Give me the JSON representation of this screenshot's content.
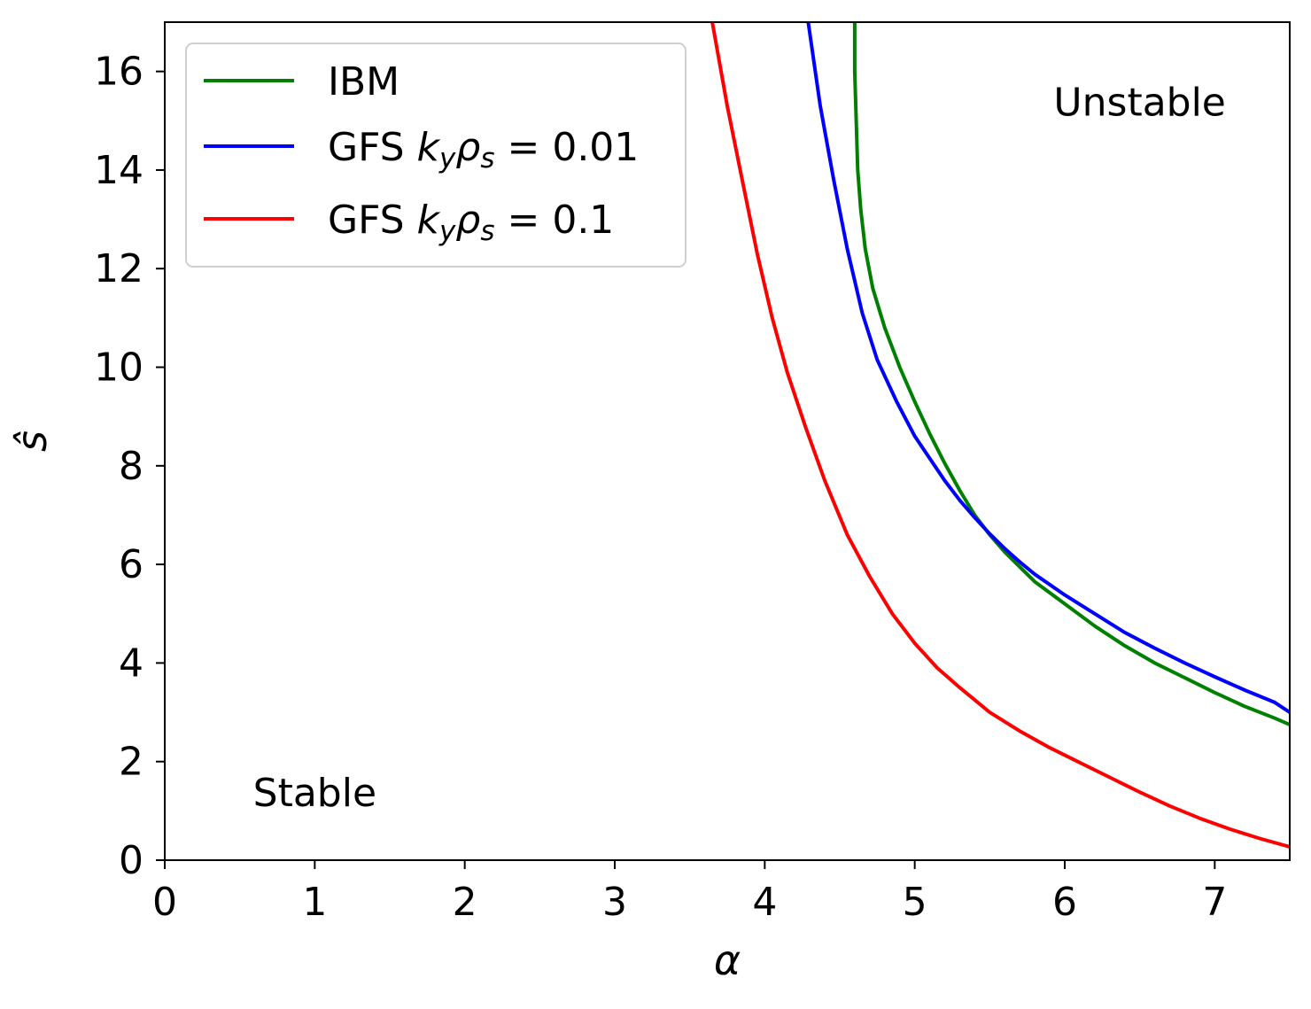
{
  "chart_data": {
    "type": "line",
    "title": "",
    "xlabel": "α",
    "ylabel": "ŝ",
    "xlim": [
      0,
      7.5
    ],
    "ylim": [
      0,
      17
    ],
    "x_ticks": [
      "0",
      "1",
      "2",
      "3",
      "4",
      "5",
      "6",
      "7"
    ],
    "y_ticks": [
      "0",
      "2",
      "4",
      "6",
      "8",
      "10",
      "12",
      "14",
      "16"
    ],
    "grid": false,
    "legend_position": "top-left",
    "annotations": [
      {
        "id": "unstable",
        "text": "Unstable",
        "x": 6.5,
        "y": 15.1
      },
      {
        "id": "stable",
        "text": "Stable",
        "x": 1.0,
        "y": 1.1
      }
    ],
    "series": [
      {
        "name": "IBM",
        "color": "#008000",
        "points": [
          [
            4.6,
            17.0
          ],
          [
            4.6,
            16.0
          ],
          [
            4.61,
            15.0
          ],
          [
            4.62,
            14.0
          ],
          [
            4.64,
            13.2
          ],
          [
            4.67,
            12.4
          ],
          [
            4.72,
            11.6
          ],
          [
            4.8,
            10.8
          ],
          [
            4.9,
            10.0
          ],
          [
            5.0,
            9.3
          ],
          [
            5.1,
            8.65
          ],
          [
            5.2,
            8.05
          ],
          [
            5.3,
            7.5
          ],
          [
            5.4,
            7.0
          ],
          [
            5.5,
            6.6
          ],
          [
            5.6,
            6.25
          ],
          [
            5.7,
            5.95
          ],
          [
            5.8,
            5.65
          ],
          [
            6.0,
            5.2
          ],
          [
            6.2,
            4.75
          ],
          [
            6.4,
            4.35
          ],
          [
            6.6,
            4.0
          ],
          [
            6.8,
            3.7
          ],
          [
            7.0,
            3.4
          ],
          [
            7.2,
            3.12
          ],
          [
            7.4,
            2.88
          ],
          [
            7.5,
            2.75
          ]
        ]
      },
      {
        "name": "GFS k_yρ_s = 0.01",
        "label_prefix": "GFS ",
        "label_k": "k",
        "label_k_sub": "y",
        "label_rho": "ρ",
        "label_rho_sub": "s",
        "label_value": " = 0.01",
        "color": "#0000ff",
        "points": [
          [
            4.29,
            17.0
          ],
          [
            4.37,
            15.3
          ],
          [
            4.46,
            13.8
          ],
          [
            4.55,
            12.4
          ],
          [
            4.65,
            11.1
          ],
          [
            4.75,
            10.15
          ],
          [
            4.88,
            9.3
          ],
          [
            5.0,
            8.6
          ],
          [
            5.1,
            8.15
          ],
          [
            5.2,
            7.7
          ],
          [
            5.3,
            7.3
          ],
          [
            5.4,
            6.95
          ],
          [
            5.5,
            6.62
          ],
          [
            5.6,
            6.32
          ],
          [
            5.7,
            6.05
          ],
          [
            5.8,
            5.8
          ],
          [
            6.0,
            5.38
          ],
          [
            6.2,
            5.0
          ],
          [
            6.4,
            4.62
          ],
          [
            6.6,
            4.3
          ],
          [
            6.8,
            4.0
          ],
          [
            7.0,
            3.72
          ],
          [
            7.2,
            3.45
          ],
          [
            7.4,
            3.2
          ],
          [
            7.5,
            3.0
          ]
        ]
      },
      {
        "name": "GFS k_yρ_s = 0.1",
        "label_prefix": "GFS ",
        "label_k": "k",
        "label_k_sub": "y",
        "label_rho": "ρ",
        "label_rho_sub": "s",
        "label_value": " = 0.1",
        "color": "#ff0000",
        "points": [
          [
            3.65,
            17.0
          ],
          [
            3.75,
            15.3
          ],
          [
            3.85,
            13.8
          ],
          [
            3.95,
            12.3
          ],
          [
            4.05,
            11.0
          ],
          [
            4.15,
            9.9
          ],
          [
            4.27,
            8.8
          ],
          [
            4.4,
            7.7
          ],
          [
            4.55,
            6.6
          ],
          [
            4.7,
            5.75
          ],
          [
            4.85,
            5.0
          ],
          [
            5.0,
            4.4
          ],
          [
            5.15,
            3.9
          ],
          [
            5.3,
            3.5
          ],
          [
            5.5,
            3.0
          ],
          [
            5.7,
            2.62
          ],
          [
            5.9,
            2.28
          ],
          [
            6.1,
            1.98
          ],
          [
            6.3,
            1.68
          ],
          [
            6.5,
            1.38
          ],
          [
            6.7,
            1.1
          ],
          [
            6.9,
            0.85
          ],
          [
            7.1,
            0.63
          ],
          [
            7.3,
            0.44
          ],
          [
            7.5,
            0.27
          ]
        ]
      }
    ]
  }
}
